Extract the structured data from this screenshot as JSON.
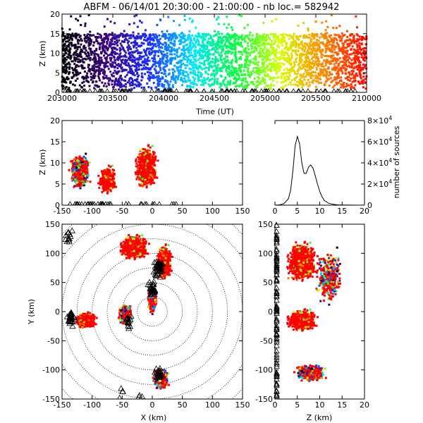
{
  "chart_data": [
    {
      "type": "scatter",
      "panel": "time-height",
      "title": "ABFM - 06/14/01 20:30:00 - 21:00:00 - nb loc.= 582942",
      "xlabel": "Time (UT)",
      "ylabel": "Z (km)",
      "xlim": [
        203000,
        210000
      ],
      "ylim": [
        0,
        20
      ],
      "x_ticks": [
        "203000",
        "203500",
        "204000",
        "204500",
        "205000",
        "205500",
        "210000"
      ],
      "y_ticks": [
        "0",
        "5",
        "10",
        "15",
        "20"
      ],
      "color_by": "time",
      "colormap": [
        "#000000",
        "#3a007a",
        "#1a2cff",
        "#00e6ff",
        "#00ff3c",
        "#d8ff00",
        "#ff8a00",
        "#ff0000"
      ]
    },
    {
      "type": "scatter",
      "panel": "x-z",
      "xlim": [
        -150,
        150
      ],
      "ylim": [
        0,
        20
      ],
      "x_ticks": [
        "-150",
        "-100",
        "-50",
        "0",
        "50",
        "100",
        "150"
      ],
      "y_ticks": [
        "0",
        "5",
        "10",
        "15",
        "20"
      ],
      "ylabel": "Z (km)"
    },
    {
      "type": "line",
      "panel": "height-histogram",
      "ylabel": "number of sources",
      "xlim": [
        0,
        20
      ],
      "ylim": [
        0,
        80000
      ],
      "x_ticks": [
        "0",
        "5",
        "10",
        "15",
        "20"
      ],
      "y_ticks": [
        {
          "base": "0",
          "exp": ""
        },
        {
          "base": "2×10",
          "exp": "4"
        },
        {
          "base": "4×10",
          "exp": "4"
        },
        {
          "base": "6×10",
          "exp": "4"
        },
        {
          "base": "8×10",
          "exp": "4"
        }
      ],
      "x": [
        0,
        1,
        2,
        3,
        3.5,
        4,
        4.5,
        5,
        5.5,
        6,
        6.5,
        7,
        7.5,
        8,
        8.5,
        9,
        9.5,
        10,
        10.5,
        11,
        12,
        13,
        14,
        15,
        16,
        17,
        18,
        19,
        20
      ],
      "y": [
        0,
        300,
        1500,
        6000,
        14000,
        32000,
        56000,
        65000,
        58000,
        40000,
        30000,
        30000,
        36000,
        38000,
        35000,
        28000,
        20000,
        13000,
        8000,
        4500,
        1800,
        800,
        300,
        150,
        80,
        40,
        20,
        10,
        0
      ]
    },
    {
      "type": "scatter",
      "panel": "x-y",
      "xlabel": "X (km)",
      "ylabel": "Y (km)",
      "xlim": [
        -150,
        150
      ],
      "ylim": [
        -150,
        150
      ],
      "x_ticks": [
        "-150",
        "-100",
        "-50",
        "0",
        "50",
        "100",
        "150"
      ],
      "y_ticks": [
        "-150",
        "-100",
        "-50",
        "0",
        "50",
        "100",
        "150"
      ],
      "range_rings_km": [
        25,
        50,
        75,
        100,
        125,
        150,
        175,
        200
      ]
    },
    {
      "type": "scatter",
      "panel": "z-y",
      "xlabel": "Z (km)",
      "xlim": [
        0,
        20
      ],
      "ylim": [
        -150,
        150
      ],
      "x_ticks": [
        "0",
        "5",
        "10",
        "15",
        "20"
      ],
      "y_ticks": [
        "-150",
        "-100",
        "-50",
        "0",
        "50",
        "100",
        "150"
      ]
    }
  ]
}
